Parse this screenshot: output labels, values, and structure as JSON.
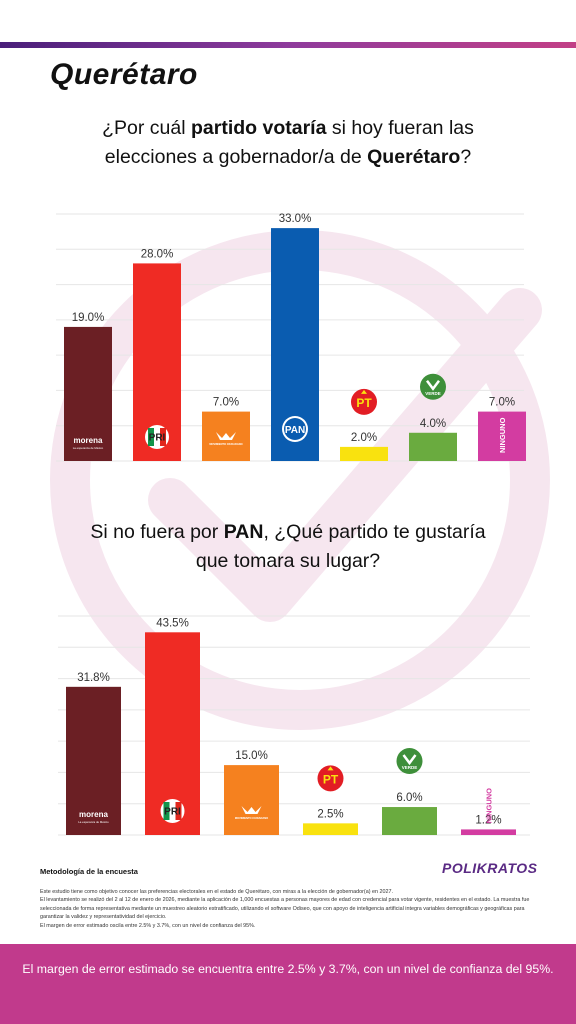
{
  "header": {
    "title": "Querétaro"
  },
  "questions": [
    {
      "parts": [
        {
          "text": "¿Por cuál ",
          "bold": false
        },
        {
          "text": "partido votaría",
          "bold": true
        },
        {
          "text": " si hoy fueran las",
          "bold": false
        },
        {
          "text": "\n",
          "bold": false
        },
        {
          "text": "elecciones a gobernador/a de ",
          "bold": false
        },
        {
          "text": "Querétaro",
          "bold": true
        },
        {
          "text": "?",
          "bold": false
        }
      ]
    },
    {
      "parts": [
        {
          "text": "Si no fuera por ",
          "bold": false
        },
        {
          "text": "PAN",
          "bold": true
        },
        {
          "text": ", ¿Qué partido te gustaría",
          "bold": false
        },
        {
          "text": "\n",
          "bold": false
        },
        {
          "text": "que tomara su lugar?",
          "bold": false
        }
      ]
    }
  ],
  "chart_data": [
    {
      "type": "bar",
      "categories": [
        "morena",
        "PRI",
        "MOVIMIENTO CIUDADANO",
        "PAN",
        "PT",
        "VERDE",
        "NINGUNO"
      ],
      "values": [
        19.0,
        28.0,
        7.0,
        33.0,
        2.0,
        4.0,
        7.0
      ],
      "value_labels": [
        "19.0%",
        "28.0%",
        "7.0%",
        "33.0%",
        "2.0%",
        "4.0%",
        "7.0%"
      ],
      "colors": [
        "#6b1f24",
        "#ef2b24",
        "#f5811f",
        "#0a5cb0",
        "#f9e20f",
        "#6aab3f",
        "#d33ca1"
      ],
      "ylim": [
        0,
        35
      ],
      "grid": true
    },
    {
      "type": "bar",
      "categories": [
        "morena",
        "PRI",
        "MOVIMIENTO CIUDADANO",
        "PT",
        "VERDE",
        "NINGUNO"
      ],
      "values": [
        31.8,
        43.5,
        15.0,
        2.5,
        6.0,
        1.2
      ],
      "value_labels": [
        "31.8%",
        "43.5%",
        "15.0%",
        "2.5%",
        "6.0%",
        "1.2%"
      ],
      "colors": [
        "#6b1f24",
        "#ef2b24",
        "#f5811f",
        "#f9e20f",
        "#6aab3f",
        "#d33ca1"
      ],
      "ylim": [
        0,
        47
      ],
      "grid": true
    }
  ],
  "logos": {
    "morena": "morena",
    "morena_sub": "La esperanza de México",
    "pri": "PRI",
    "mc": "MOVIMIENTO CIUDADANO",
    "pan": "PAN",
    "pt": "PT",
    "verde": "VERDE",
    "ninguno": "NINGUNO"
  },
  "methodology": {
    "title": "Metodología de la encuesta",
    "paragraphs": [
      "Este estudio tiene como objetivo conocer las preferencias electorales en el estado de Querétaro, con miras a la elección de gobernador(a) en 2027.",
      "El levantamiento se realizó del 2 al 12 de enero de 2026, mediante la aplicación de 1,000 encuestas a personas mayores de edad con credencial para votar vigente, residentes en el estado. La muestra fue seleccionada de forma representativa mediante un muestreo aleatorio estratificado, utilizando el software Odiseo, que con apoyo de inteligencia artificial integra variables demográficas y geográficas para garantizar la validez y representatividad del ejercicio.",
      "El margen de error estimado oscila entre 2.5% y 3.7%, con un nivel de confianza del 95%."
    ]
  },
  "brand": "POLIKRATOS",
  "footer": {
    "text": "El margen de error estimado se encuentra entre 2.5% y 3.7%, con un nivel de confianza del 95%."
  }
}
